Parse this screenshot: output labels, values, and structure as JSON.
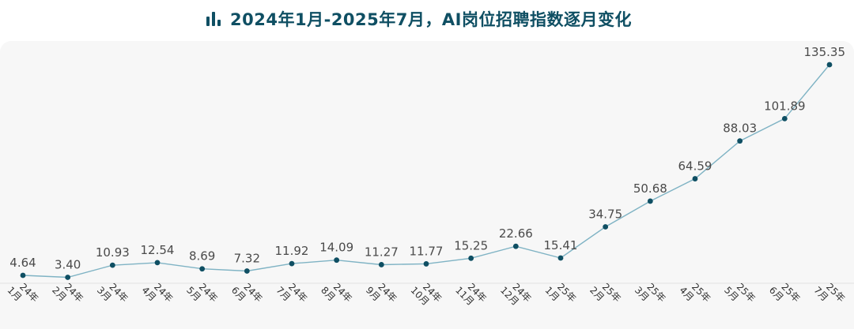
{
  "header": {
    "title": "2024年1月-2025年7月，AI岗位招聘指数逐月变化",
    "icon": "bar-chart-icon"
  },
  "colors": {
    "title": "#0f4f63",
    "line": "#7fb3c4",
    "point": "#0f4f63",
    "panel": "#f7f7f7"
  },
  "chart_data": {
    "type": "line",
    "title": "2024年1月-2025年7月，AI岗位招聘指数逐月变化",
    "xlabel": "",
    "ylabel": "",
    "categories": [
      [
        "24年",
        "1月"
      ],
      [
        "24年",
        "2月"
      ],
      [
        "24年",
        "3月"
      ],
      [
        "24年",
        "4月"
      ],
      [
        "24年",
        "5月"
      ],
      [
        "24年",
        "6月"
      ],
      [
        "24年",
        "7月"
      ],
      [
        "24年",
        "8月"
      ],
      [
        "24年",
        "9月"
      ],
      [
        "24年",
        "10月"
      ],
      [
        "24年",
        "11月"
      ],
      [
        "24年",
        "12月"
      ],
      [
        "25年",
        "1月"
      ],
      [
        "25年",
        "2月"
      ],
      [
        "25年",
        "3月"
      ],
      [
        "25年",
        "4月"
      ],
      [
        "25年",
        "5月"
      ],
      [
        "25年",
        "6月"
      ],
      [
        "25年",
        "7月"
      ]
    ],
    "values": [
      4.64,
      3.4,
      10.93,
      12.54,
      8.69,
      7.32,
      11.92,
      14.09,
      11.27,
      11.77,
      15.25,
      22.66,
      15.41,
      34.75,
      50.68,
      64.59,
      88.03,
      101.89,
      135.35
    ],
    "value_labels": [
      "4.64",
      "3.40",
      "10.93",
      "12.54",
      "8.69",
      "7.32",
      "11.92",
      "14.09",
      "11.27",
      "11.77",
      "15.25",
      "22.66",
      "15.41",
      "34.75",
      "50.68",
      "64.59",
      "88.03",
      "101.89",
      "135.35"
    ],
    "ylim": [
      0,
      140
    ],
    "grid": false,
    "legend": "none"
  }
}
